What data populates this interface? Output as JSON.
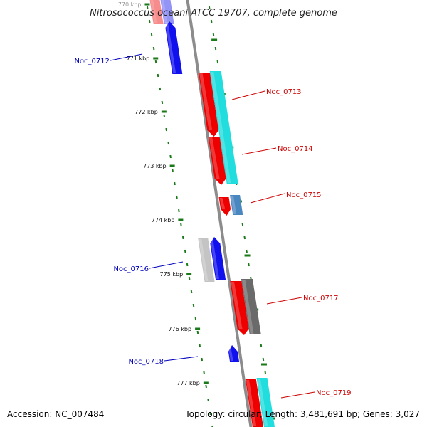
{
  "title": "Nitrosococcus oceani ATCC 19707, complete genome",
  "footer": {
    "accession": "Accession: NC_007484",
    "summary": "Topology: circular; Length: 3,481,691 bp; Genes: 3,027"
  },
  "colors": {
    "forward_label": "#cc0000",
    "reverse_label": "#0000bb",
    "backbone": "#8c8c8c",
    "tick_mark": "#1a7a1a",
    "red_cds": "#ee0000",
    "blue_cds": "#1111ee",
    "cyan_cds": "#22dddd",
    "steelblue_cds": "#4a86c0",
    "gray_cds": "#6a6a6a",
    "lightgray_cds": "#c4c4c4"
  },
  "ticks": [
    "770 kbp",
    "771 kbp",
    "772 kbp",
    "773 kbp",
    "774 kbp",
    "775 kbp",
    "776 kbp",
    "777 kbp"
  ],
  "genes": [
    {
      "label": "Noc_0712",
      "strand": "reverse"
    },
    {
      "label": "Noc_0713",
      "strand": "forward"
    },
    {
      "label": "Noc_0714",
      "strand": "forward"
    },
    {
      "label": "Noc_0715",
      "strand": "forward"
    },
    {
      "label": "Noc_0716",
      "strand": "reverse"
    },
    {
      "label": "Noc_0717",
      "strand": "forward"
    },
    {
      "label": "Noc_0718",
      "strand": "reverse"
    },
    {
      "label": "Noc_0719",
      "strand": "forward"
    }
  ]
}
